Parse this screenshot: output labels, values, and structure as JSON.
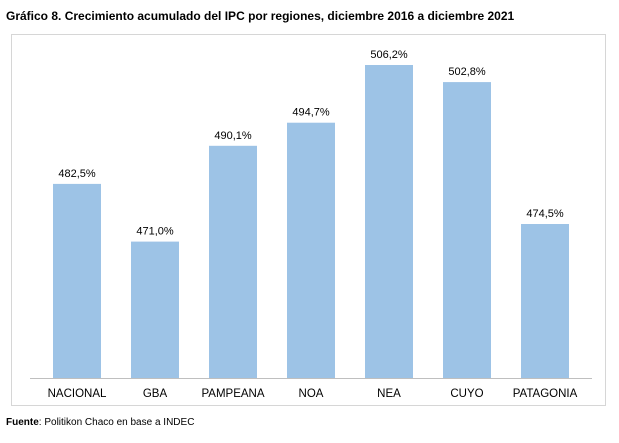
{
  "title": "Gráfico 8. Crecimiento acumulado del IPC por regiones, diciembre 2016 a diciembre 2021",
  "source": {
    "label": "Fuente",
    "text": ": Politikon Chaco en base a INDEC"
  },
  "colors": {
    "bar": "#9dc3e6",
    "axis": "#bfbfbf"
  },
  "chart_data": {
    "type": "bar",
    "title": "Gráfico 8. Crecimiento acumulado del IPC por regiones, diciembre 2016 a diciembre 2021",
    "xlabel": "",
    "ylabel": "",
    "categories": [
      "NACIONAL",
      "GBA",
      "PAMPEANA",
      "NOA",
      "NEA",
      "CUYO",
      "PATAGONIA"
    ],
    "values": [
      482.5,
      471.0,
      490.1,
      494.7,
      506.2,
      502.8,
      474.5
    ],
    "data_labels": [
      "482,5%",
      "471,0%",
      "490,1%",
      "494,7%",
      "506,2%",
      "502,8%",
      "474,5%"
    ],
    "ylim": [
      443.8,
      506.2
    ],
    "grid": false,
    "legend": "none"
  }
}
